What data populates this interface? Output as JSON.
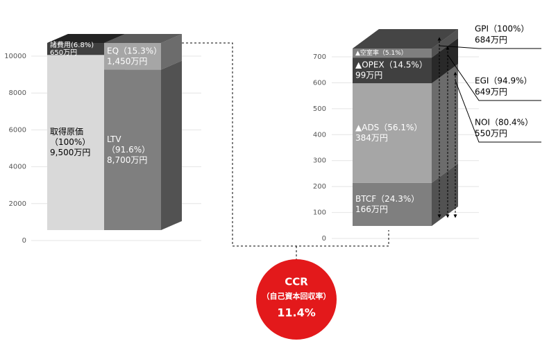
{
  "chart_data": [
    {
      "type": "stacked-bar-3d",
      "ylim": [
        0,
        11000
      ],
      "yticks": [
        0,
        2000,
        4000,
        6000,
        8000,
        10000
      ],
      "grid": true,
      "bars": [
        {
          "segments": [
            {
              "name": "取得原価",
              "note": "（100%）",
              "value": 9500,
              "value_label": "9,500万円",
              "color": "#d9d9d9"
            },
            {
              "name": "諸費用(6.8%)",
              "value": 650,
              "value_label": "650万円",
              "color": "#404040"
            }
          ]
        },
        {
          "segments": [
            {
              "name": "LTV",
              "note": "（91.6%）",
              "value": 8700,
              "value_label": "8,700万円",
              "color": "#7f7f7f"
            },
            {
              "name": "EQ（15.3%）",
              "value": 1450,
              "value_label": "1,450万円",
              "color": "#a6a6a6"
            }
          ]
        }
      ]
    },
    {
      "type": "stacked-bar-3d",
      "ylim": [
        0,
        800
      ],
      "yticks": [
        0,
        100,
        200,
        300,
        400,
        500,
        600,
        700
      ],
      "grid": true,
      "bars": [
        {
          "segments": [
            {
              "name": "BTCF（24.3%）",
              "value": 166,
              "value_label": "166万円",
              "color": "#7f7f7f"
            },
            {
              "name": "▲ADS（56.1%）",
              "value": 384,
              "value_label": "384万円",
              "color": "#a6a6a6"
            },
            {
              "name": "▲OPEX（14.5%）",
              "value": 99,
              "value_label": "99万円",
              "color": "#404040"
            },
            {
              "name": "▲空室率（5.1%）",
              "value": 35,
              "color": "#7f7f7f"
            }
          ]
        }
      ],
      "brackets": [
        {
          "name": "GPI（100%）",
          "value": 684,
          "value_label": "684万円"
        },
        {
          "name": "EGI（94.9%）",
          "value": 649,
          "value_label": "649万円"
        },
        {
          "name": "NOI（80.4%）",
          "value": 550,
          "value_label": "550万円"
        }
      ]
    }
  ],
  "ccr": {
    "title": "CCR",
    "subtitle": "（自己資本回収率）",
    "value": "11.4%"
  }
}
